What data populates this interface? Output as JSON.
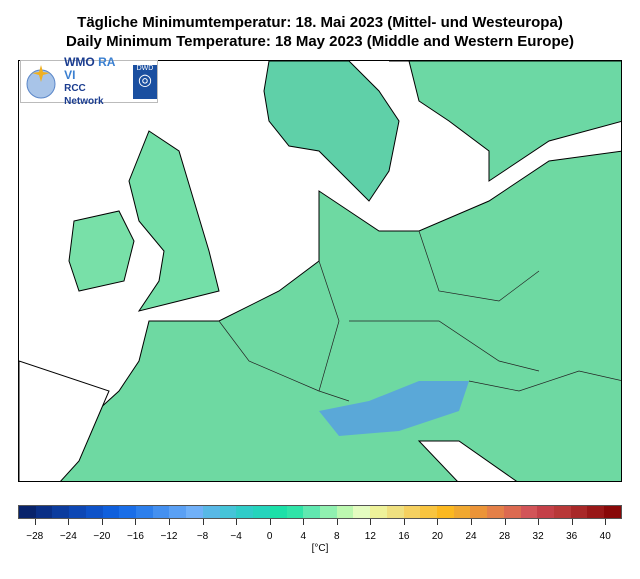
{
  "title_de": "Tägliche Minimumtemperatur:  18. Mai 2023  (Mittel- und Westeuropa)",
  "title_en": "Daily Minimum Temperature:  18 May 2023  (Middle and Western Europe)",
  "logo": {
    "line1a": "WMO",
    "line1b": "RA VI",
    "line2": "RCC Network",
    "badge": "DWD"
  },
  "colorbar": {
    "min": -30,
    "max": 42,
    "step": 2,
    "ticks": [
      "−28",
      "−24",
      "−20",
      "−16",
      "−12",
      "−8",
      "−4",
      "0",
      "4",
      "8",
      "12",
      "16",
      "20",
      "24",
      "28",
      "32",
      "36",
      "40"
    ],
    "tick_values": [
      -28,
      -24,
      -20,
      -16,
      -12,
      -8,
      -4,
      0,
      4,
      8,
      12,
      16,
      20,
      24,
      28,
      32,
      36,
      40
    ],
    "unit": "[°C]",
    "colors": [
      "#08236b",
      "#0a2f86",
      "#0c3c9e",
      "#0d47b4",
      "#0e52c8",
      "#0f5fdc",
      "#1a6ee8",
      "#2d7fec",
      "#4490f0",
      "#5aa0f4",
      "#70b0f8",
      "#58b8e6",
      "#45c4d8",
      "#30ccc8",
      "#25d4bc",
      "#1ce0a8",
      "#30e4a8",
      "#60e8b0",
      "#90f0b0",
      "#bcf8b0",
      "#e4fcc0",
      "#eef29a",
      "#efe080",
      "#f5d060",
      "#f8c440",
      "#fbb820",
      "#f0a830",
      "#eb9438",
      "#e48048",
      "#dc6a50",
      "#d25458",
      "#c44048",
      "#b83838",
      "#a82828",
      "#981818",
      "#880808"
    ]
  },
  "map": {
    "land_color": "#6fdca6",
    "sea_color": "#ffffff"
  }
}
